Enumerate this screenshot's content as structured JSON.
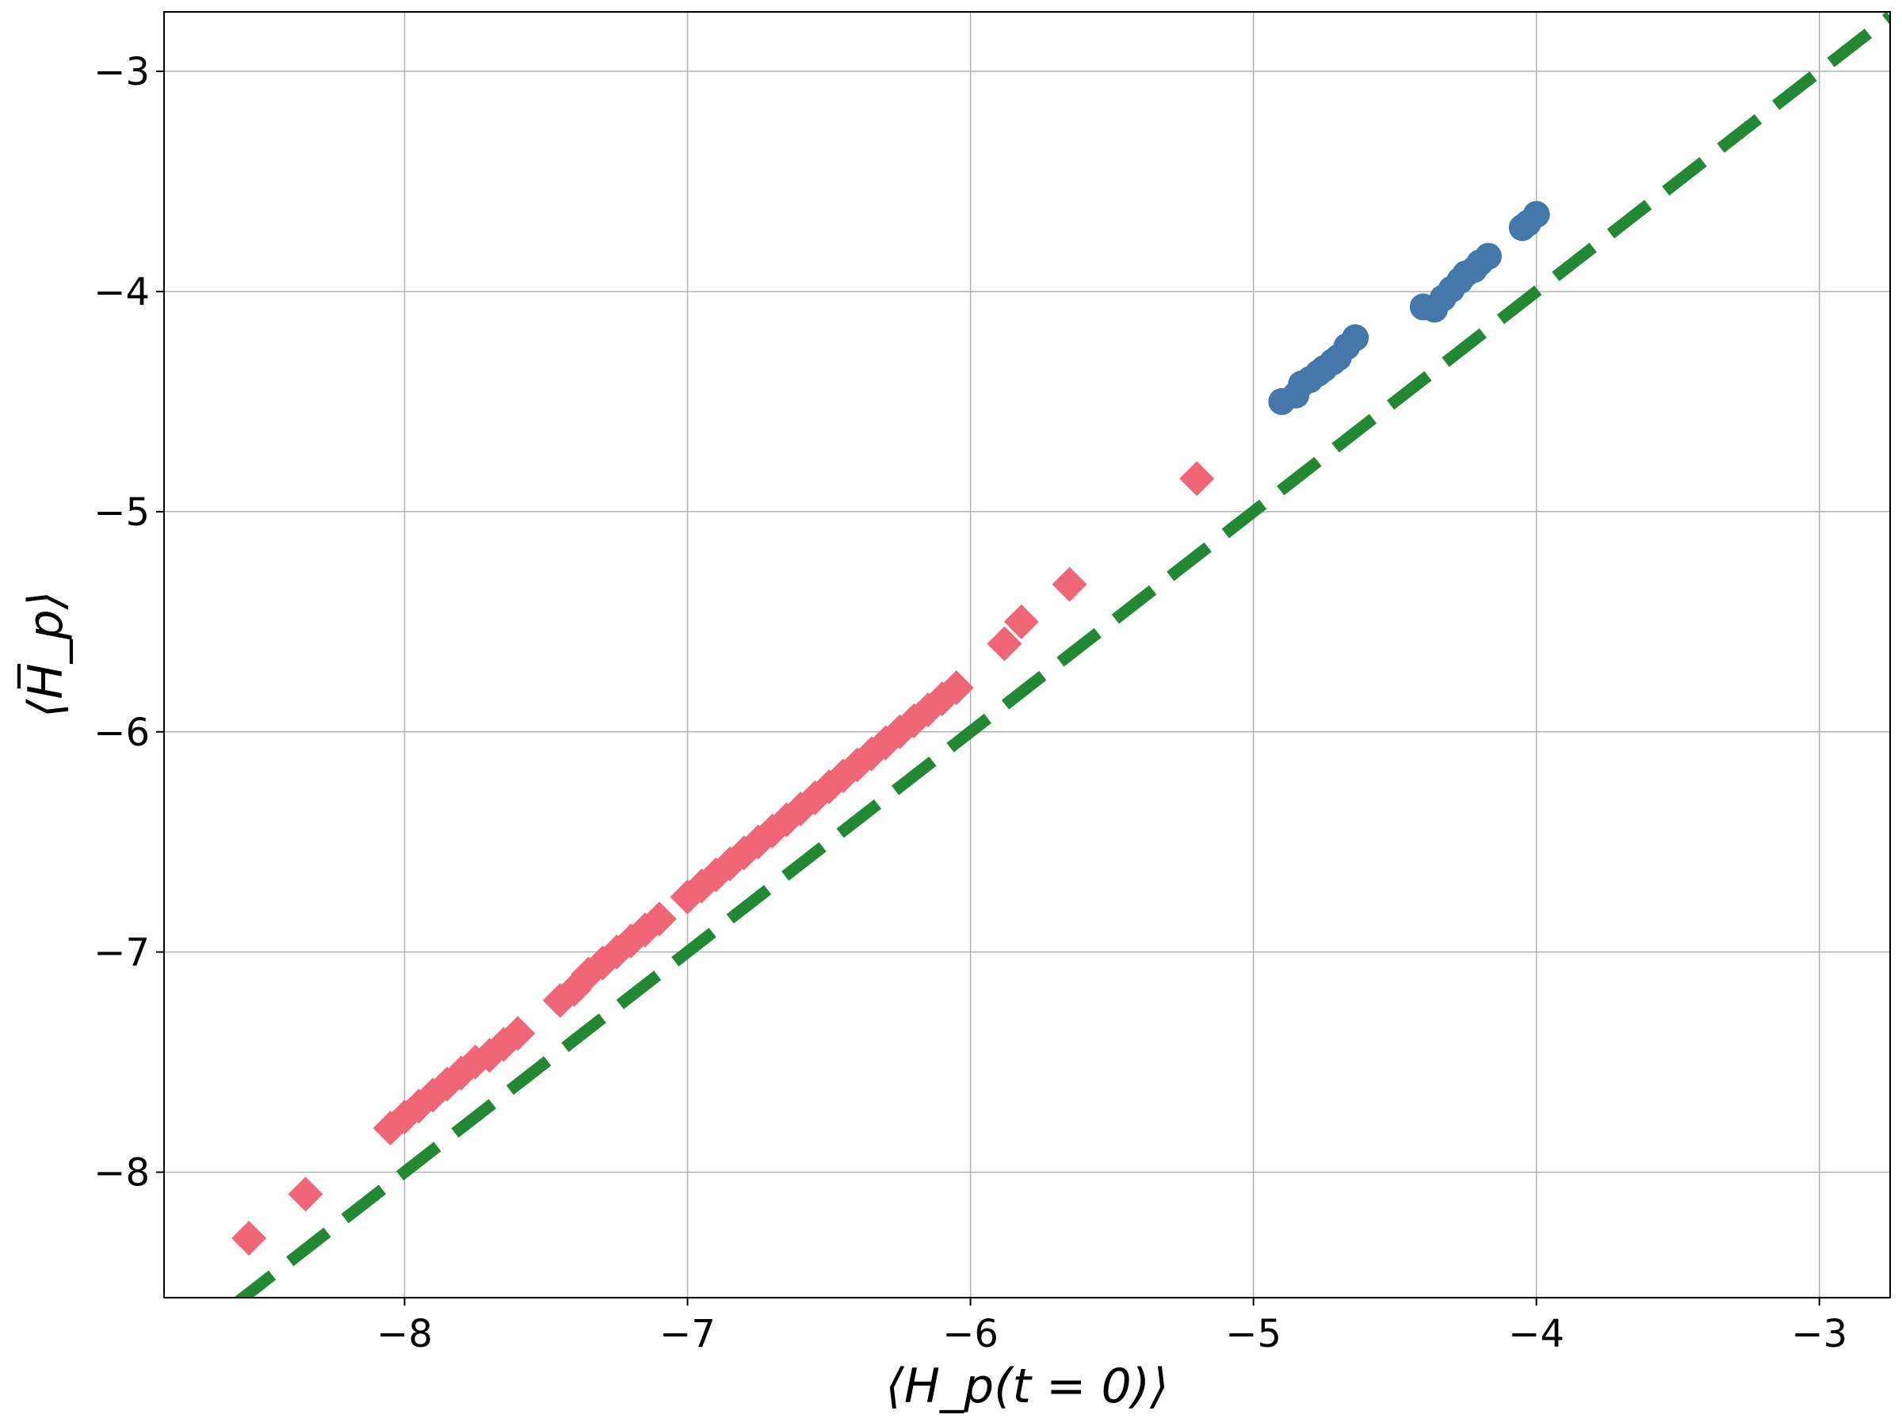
{
  "chart_data": {
    "type": "scatter",
    "title": "",
    "xlabel": "⟨H_p(t = 0)⟩",
    "ylabel": "⟨H̅_p⟩",
    "xlim": [
      -8.85,
      -2.75
    ],
    "ylim": [
      -8.57,
      -2.73
    ],
    "x_ticks": [
      -8,
      -7,
      -6,
      -5,
      -4,
      -3
    ],
    "y_ticks": [
      -8,
      -7,
      -6,
      -5,
      -4,
      -3
    ],
    "x_tick_labels": [
      "−8",
      "−7",
      "−6",
      "−5",
      "−4",
      "−3"
    ],
    "y_tick_labels": [
      "−8",
      "−7",
      "−6",
      "−5",
      "−4",
      "−3"
    ],
    "grid": true,
    "legend": "none",
    "series": [
      {
        "marker": "diamond",
        "color": "#ee6677",
        "points": [
          [
            -8.55,
            -8.3
          ],
          [
            -8.35,
            -8.1
          ],
          [
            -8.05,
            -7.8
          ],
          [
            -8.0,
            -7.75
          ],
          [
            -7.95,
            -7.7
          ],
          [
            -7.9,
            -7.65
          ],
          [
            -7.85,
            -7.6
          ],
          [
            -7.8,
            -7.55
          ],
          [
            -7.75,
            -7.5
          ],
          [
            -7.7,
            -7.47
          ],
          [
            -7.65,
            -7.42
          ],
          [
            -7.6,
            -7.37
          ],
          [
            -7.45,
            -7.22
          ],
          [
            -7.4,
            -7.17
          ],
          [
            -7.35,
            -7.1
          ],
          [
            -7.3,
            -7.05
          ],
          [
            -7.25,
            -7.0
          ],
          [
            -7.2,
            -6.95
          ],
          [
            -7.15,
            -6.9
          ],
          [
            -7.1,
            -6.85
          ],
          [
            -7.0,
            -6.75
          ],
          [
            -6.95,
            -6.7
          ],
          [
            -6.9,
            -6.65
          ],
          [
            -6.85,
            -6.6
          ],
          [
            -6.8,
            -6.55
          ],
          [
            -6.75,
            -6.5
          ],
          [
            -6.7,
            -6.45
          ],
          [
            -6.65,
            -6.4
          ],
          [
            -6.6,
            -6.35
          ],
          [
            -6.55,
            -6.3
          ],
          [
            -6.5,
            -6.25
          ],
          [
            -6.45,
            -6.2
          ],
          [
            -6.4,
            -6.15
          ],
          [
            -6.35,
            -6.1
          ],
          [
            -6.3,
            -6.05
          ],
          [
            -6.25,
            -6.0
          ],
          [
            -6.2,
            -5.95
          ],
          [
            -6.15,
            -5.9
          ],
          [
            -6.1,
            -5.85
          ],
          [
            -6.05,
            -5.8
          ],
          [
            -5.88,
            -5.6
          ],
          [
            -5.82,
            -5.5
          ],
          [
            -5.65,
            -5.33
          ],
          [
            -5.2,
            -4.85
          ]
        ]
      },
      {
        "marker": "circle",
        "color": "#4477aa",
        "points": [
          [
            -4.9,
            -4.5
          ],
          [
            -4.85,
            -4.47
          ],
          [
            -4.83,
            -4.42
          ],
          [
            -4.8,
            -4.4
          ],
          [
            -4.77,
            -4.37
          ],
          [
            -4.75,
            -4.35
          ],
          [
            -4.72,
            -4.32
          ],
          [
            -4.7,
            -4.3
          ],
          [
            -4.67,
            -4.25
          ],
          [
            -4.64,
            -4.21
          ],
          [
            -4.4,
            -4.07
          ],
          [
            -4.36,
            -4.08
          ],
          [
            -4.33,
            -4.03
          ],
          [
            -4.3,
            -3.99
          ],
          [
            -4.27,
            -3.95
          ],
          [
            -4.25,
            -3.92
          ],
          [
            -4.22,
            -3.9
          ],
          [
            -4.2,
            -3.87
          ],
          [
            -4.17,
            -3.84
          ],
          [
            -4.05,
            -3.71
          ],
          [
            -4.03,
            -3.69
          ],
          [
            -4.0,
            -3.65
          ]
        ]
      },
      {
        "marker": "dashed-line",
        "color": "#228833",
        "x": [
          -8.6,
          -2.75
        ],
        "y": [
          -8.6,
          -2.75
        ]
      }
    ]
  }
}
